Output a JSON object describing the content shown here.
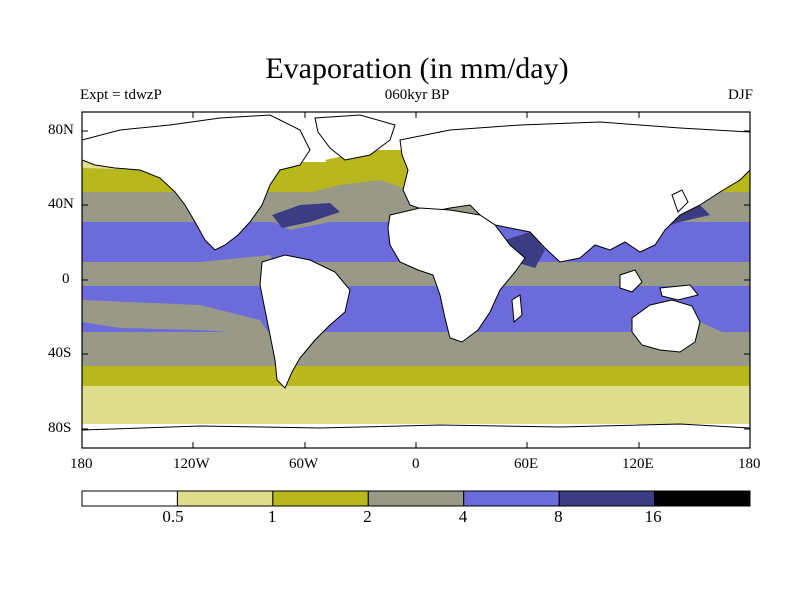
{
  "title": "Evaporation (in mm/day)",
  "left_string": "Expt = tdwzP",
  "center_string": "060kyr BP",
  "right_string": "DJF",
  "lat_ticks": [
    "80N",
    "40N",
    "0",
    "40S",
    "80S"
  ],
  "lon_ticks": [
    "180",
    "120W",
    "60W",
    "0",
    "60E",
    "120E",
    "180"
  ],
  "colorbar": {
    "levels": [
      "0.5",
      "1",
      "2",
      "4",
      "8",
      "16"
    ],
    "colors": [
      "#ffffff",
      "#dede8c",
      "#b8b81c",
      "#999987",
      "#6b6bdc",
      "#3c3c84",
      "#000000"
    ]
  },
  "field_colors": {
    "land": "#ffffff",
    "tropical_ocean": "#6b6bdc",
    "subtropical_ocean": "#999987",
    "midlat_ocean": "#b8b81c",
    "highlat_ocean": "#dede8c",
    "strong_evap": "#3c3c84"
  }
}
